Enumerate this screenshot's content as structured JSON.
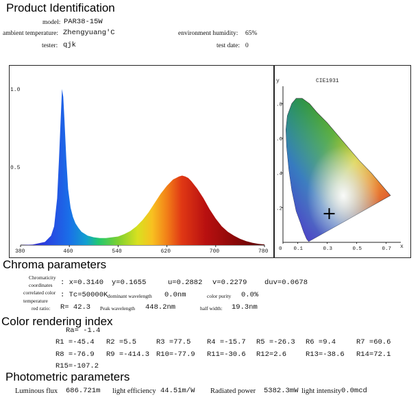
{
  "product": {
    "heading": "Product Identification",
    "model_label": "model:",
    "model_value": "PAR38-15W",
    "ambient_temp_label": "ambient temperature:",
    "ambient_temp_value": "Zhengyuang'C",
    "humidity_label": "environment humidity:",
    "humidity_value": "65%",
    "tester_label": "tester:",
    "tester_value": "qjk",
    "test_date_label": "test date:",
    "test_date_value": "0"
  },
  "chart_data": [
    {
      "type": "area",
      "title": "",
      "xlabel": "",
      "ylabel": "",
      "xlim": [
        380,
        780
      ],
      "ylim": [
        0,
        1.0
      ],
      "x_ticks": [
        "380",
        "460",
        "540",
        "620",
        "700",
        "780"
      ],
      "y_ticks": [
        "1.0",
        "0.5"
      ],
      "grid": false,
      "legend": "none",
      "series": [
        {
          "x": [
            380,
            400,
            420,
            430,
            435,
            440,
            443,
            446,
            448,
            450,
            452,
            455,
            458,
            462,
            466,
            470,
            475,
            480,
            490,
            500,
            510,
            520,
            530,
            540,
            550,
            560,
            570,
            580,
            590,
            600,
            610,
            620,
            630,
            640,
            645,
            650,
            655,
            660,
            670,
            680,
            690,
            700,
            710,
            720,
            730,
            740,
            750,
            760,
            770,
            780
          ],
          "values": [
            0.0,
            0.003,
            0.02,
            0.06,
            0.12,
            0.3,
            0.55,
            0.82,
            1.0,
            0.95,
            0.8,
            0.55,
            0.36,
            0.24,
            0.18,
            0.14,
            0.11,
            0.085,
            0.06,
            0.05,
            0.045,
            0.045,
            0.05,
            0.055,
            0.07,
            0.09,
            0.12,
            0.16,
            0.21,
            0.27,
            0.33,
            0.38,
            0.42,
            0.44,
            0.445,
            0.44,
            0.43,
            0.41,
            0.36,
            0.3,
            0.23,
            0.17,
            0.12,
            0.085,
            0.06,
            0.04,
            0.025,
            0.015,
            0.008,
            0.004
          ]
        }
      ]
    },
    {
      "type": "scatter",
      "title": "CIE1931",
      "xlabel": "x",
      "ylabel": "y",
      "xlim": [
        0,
        0.8
      ],
      "ylim": [
        0,
        0.9
      ],
      "x_ticks": [
        "0",
        "0.1",
        "0.3",
        "0.5",
        "0.7"
      ],
      "y_ticks": [
        ".8",
        ".6",
        ".4",
        ".2"
      ],
      "grid": false,
      "legend": "none",
      "series": [
        {
          "x": [
            0.314
          ],
          "values": [
            0.1655
          ]
        }
      ]
    }
  ],
  "chroma": {
    "heading": "Chroma parameters",
    "coords_label_1": "Chromaticity",
    "coords_label_2": "coordinates",
    "x_value": ": x=0.3140",
    "y_value": "y=0.1655",
    "u_value": "u=0.2882",
    "v_value": "v=0.2279",
    "duv_value": "duv=0.0678",
    "cct_label_1": "correlated color",
    "cct_label_2": "temperature",
    "cct_value": ": Tc=50000K",
    "dominant_label": "dominant wavelength",
    "dominant_value": "0.0nm",
    "purity_label": "color purity",
    "purity_value": "0.0%",
    "red_ratio_label": "red ratio:",
    "red_ratio_value": "R= 42.3",
    "peak_label": "Peak wavelength",
    "peak_value": "448.2nm",
    "half_width_label": "half width:",
    "half_width_value": "19.3nm"
  },
  "color_rendering": {
    "heading": "Color rendering index",
    "ra": "Ra= -1.4",
    "row1": [
      "R1 =-45.4",
      "R2 =5.5",
      "R3 =77.5",
      "R4 =-15.7",
      "R5 =-26.3",
      "R6 =9.4",
      "R7 =60.6"
    ],
    "row2": [
      "R8 =-76.9",
      "R9 =-414.3",
      "R10=-77.9",
      "R11=-30.6",
      "R12=2.6",
      "R13=-38.6",
      "R14=72.1"
    ],
    "row3": [
      "R15=-107.2"
    ]
  },
  "photometric": {
    "heading": "Photometric parameters",
    "flux_label": "Luminous flux",
    "flux_value": "686.721m",
    "efficiency_label": "light efficiency",
    "efficiency_value": "44.51m/W",
    "radiated_label": "Radiated power",
    "radiated_value": "5382.3mW",
    "intensity_label": "light intensity",
    "intensity_value": "0.0mcd"
  }
}
